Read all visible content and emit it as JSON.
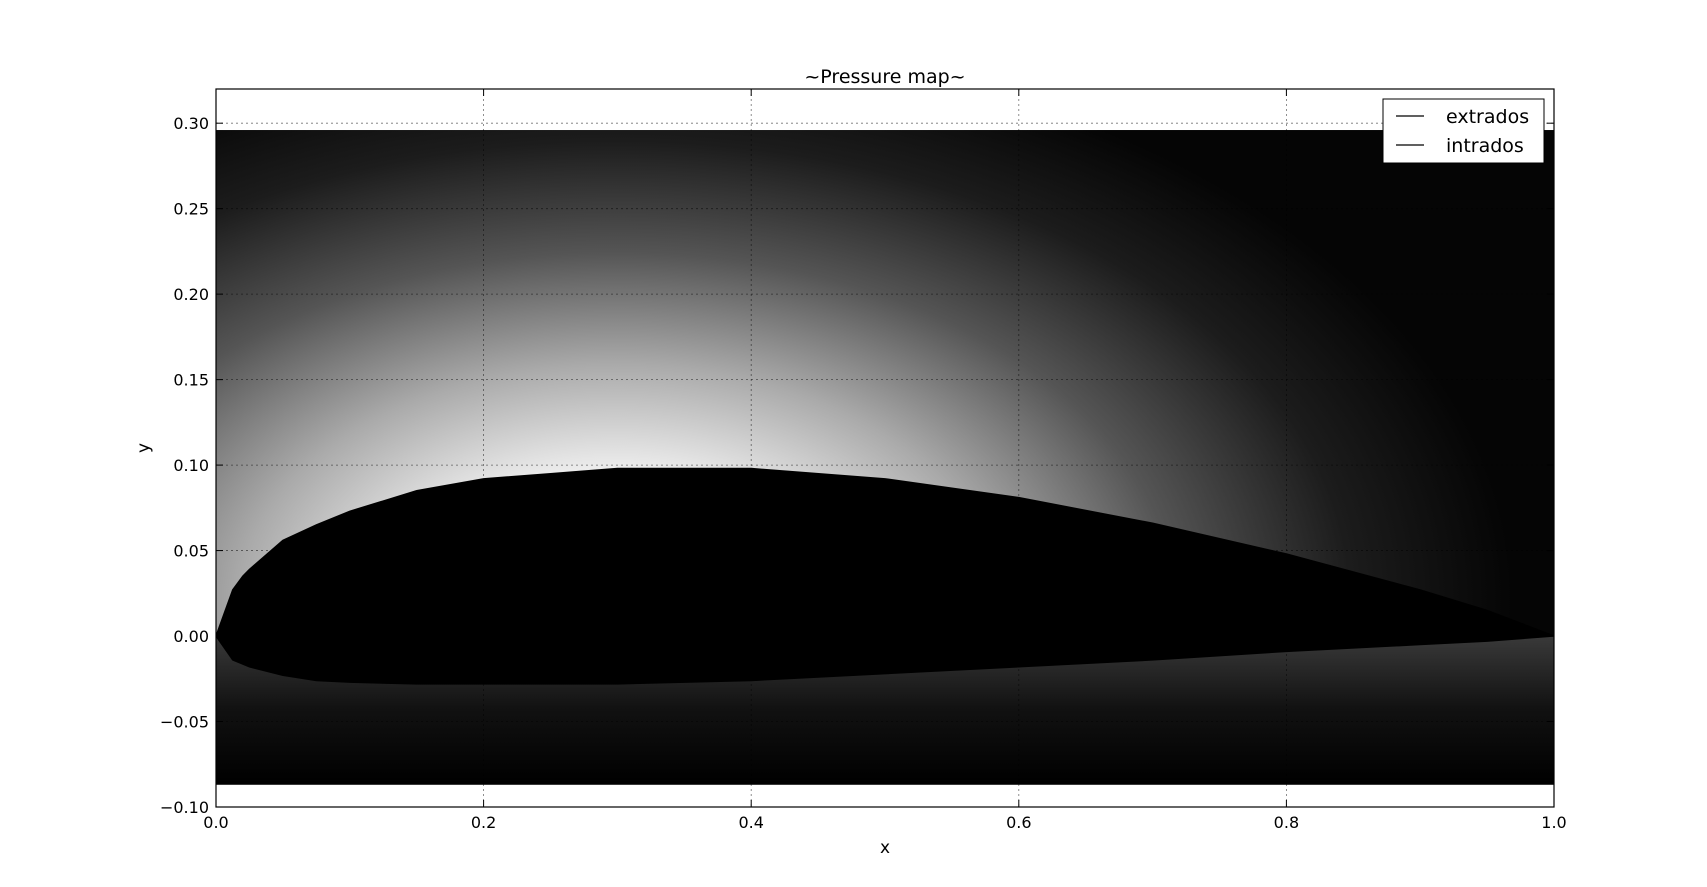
{
  "chart_data": {
    "type": "area",
    "title": "~Pressure map~",
    "xlabel": "x",
    "ylabel": "y",
    "xlim": [
      0.0,
      1.0
    ],
    "ylim": [
      -0.1,
      0.32
    ],
    "xticks": [
      0.0,
      0.2,
      0.4,
      0.6,
      0.8,
      1.0
    ],
    "xtick_labels": [
      "0.0",
      "0.2",
      "0.4",
      "0.6",
      "0.8",
      "1.0"
    ],
    "yticks": [
      -0.1,
      -0.05,
      0.0,
      0.05,
      0.1,
      0.15,
      0.2,
      0.25,
      0.3
    ],
    "ytick_labels": [
      "−0.10",
      "−0.05",
      "0.00",
      "0.05",
      "0.10",
      "0.15",
      "0.20",
      "0.25",
      "0.30"
    ],
    "grid": true,
    "legend_position": "top-right",
    "pressure_map": {
      "x_range": [
        0.0,
        1.0
      ],
      "y_range": [
        -0.087,
        0.296
      ],
      "colormap": "grayscale"
    },
    "series": [
      {
        "name": "extrados",
        "color": "#000000",
        "x": [
          0.0,
          0.0125,
          0.02,
          0.025,
          0.05,
          0.075,
          0.1,
          0.15,
          0.2,
          0.25,
          0.3,
          0.4,
          0.5,
          0.6,
          0.7,
          0.8,
          0.9,
          0.95,
          1.0
        ],
        "y": [
          0.0,
          0.027,
          0.035,
          0.039,
          0.056,
          0.065,
          0.073,
          0.085,
          0.092,
          0.095,
          0.098,
          0.098,
          0.092,
          0.081,
          0.066,
          0.048,
          0.027,
          0.015,
          0.0
        ]
      },
      {
        "name": "intrados",
        "color": "#000000",
        "x": [
          0.0,
          0.0125,
          0.025,
          0.05,
          0.075,
          0.1,
          0.15,
          0.2,
          0.3,
          0.4,
          0.5,
          0.6,
          0.7,
          0.8,
          0.9,
          0.95,
          1.0
        ],
        "y": [
          0.0,
          -0.014,
          -0.018,
          -0.023,
          -0.026,
          -0.027,
          -0.028,
          -0.028,
          -0.028,
          -0.026,
          -0.022,
          -0.018,
          -0.014,
          -0.009,
          -0.005,
          -0.003,
          0.0
        ]
      }
    ]
  }
}
